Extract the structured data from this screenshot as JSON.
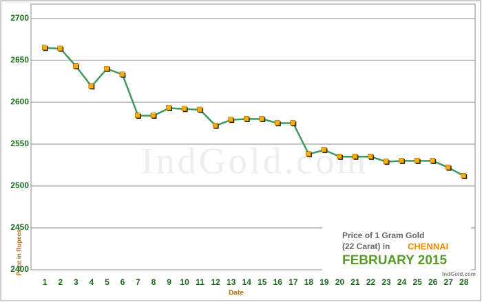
{
  "chart_data": {
    "type": "line",
    "watermark": "IndGold.com",
    "x_label": "Date",
    "y_label": "Price in Rupees",
    "annotation": {
      "line1": "Price of 1 Gram Gold",
      "line2": "(22 Carat) in",
      "city": "CHENNAI",
      "period": "FEBRUARY 2015",
      "source": "IndGold.com"
    },
    "categories": [
      "1",
      "2",
      "3",
      "4",
      "5",
      "6",
      "7",
      "8",
      "9",
      "10",
      "11",
      "12",
      "13",
      "14",
      "15",
      "16",
      "17",
      "18",
      "19",
      "20",
      "21",
      "22",
      "23",
      "24",
      "25",
      "26",
      "27",
      "28"
    ],
    "series": [
      {
        "color": "#3c9b5c",
        "marker_color": "#ffad00",
        "values": [
          2665,
          2664,
          2643,
          2619,
          2640,
          2633,
          2584,
          2584,
          2593,
          2592,
          2591,
          2572,
          2579,
          2580,
          2580,
          2575,
          2575,
          2538,
          2543,
          2535,
          2535,
          2535,
          2529,
          2530,
          2530,
          2530,
          2522,
          2512
        ]
      }
    ],
    "ylim": [
      2400,
      2700
    ],
    "yticks": [
      2400,
      2450,
      2500,
      2550,
      2600,
      2650,
      2700
    ],
    "grid": true
  }
}
